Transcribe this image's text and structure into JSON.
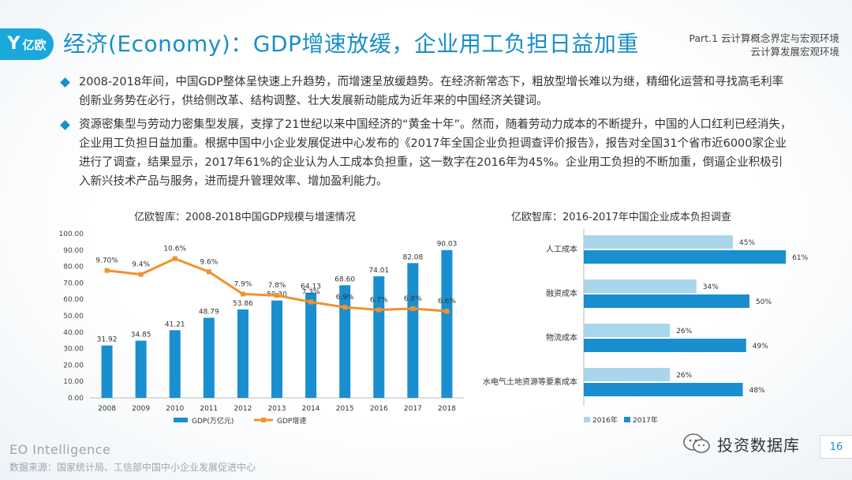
{
  "header": {
    "logo_text": "亿欧",
    "title": "经济(Economy)：GDP增速放缓，企业用工负担日益加重",
    "part_line1": "Part.1  云计算概念界定与宏观环境",
    "part_line2": "云计算发展宏观环境"
  },
  "bullets": [
    "2008-2018年间，中国GDP整体呈快速上升趋势，而增速呈放缓趋势。在经济新常态下，粗放型增长难以为继，精细化运营和寻找高毛利率创新业务势在必行，供给侧改革、结构调整、壮大发展新动能成为近年来的中国经济关键词。",
    "资源密集型与劳动力密集型发展，支撑了21世纪以来中国经济的“黄金十年”。然而，随着劳动力成本的不断提升，中国的人口红利已经消失，企业用工负担日益加重。根据中国中小企业发展促进中心发布的《2017年全国企业负担调查评价报告》，报告对全国31个省市近6000家企业进行了调查，结果显示，2017年61%的企业认为人工成本负担重，这一数字在2016年为45%。企业用工负担的不断加重，倒逼企业积极引入新兴技术产品与服务，进而提升管理效率、增加盈利能力。"
  ],
  "chart_data": [
    {
      "type": "bar",
      "title": "亿欧智库：2008-2018中国GDP规模与增速情况",
      "categories": [
        "2008",
        "2009",
        "2010",
        "2011",
        "2012",
        "2013",
        "2014",
        "2015",
        "2016",
        "2017",
        "2018"
      ],
      "series": [
        {
          "name": "GDP(万亿元)",
          "type": "bar",
          "color": "#1a8fd0",
          "values": [
            31.92,
            34.85,
            41.21,
            48.79,
            53.86,
            59.3,
            64.13,
            68.6,
            74.01,
            82.08,
            90.03
          ],
          "labels": [
            "31.92",
            "34.85",
            "41.21",
            "48.79",
            "53.86",
            "59.30",
            "64.13",
            "68.60",
            "74.01",
            "82.08",
            "90.03"
          ]
        },
        {
          "name": "GDP增速",
          "type": "line",
          "color": "#f0922e",
          "values": [
            9.7,
            9.4,
            10.6,
            9.6,
            7.9,
            7.8,
            7.3,
            6.9,
            6.7,
            6.8,
            6.6
          ],
          "labels": [
            "9.70%",
            "9.4%",
            "10.6%",
            "9.6%",
            "7.9%",
            "7.8%",
            "7.3%",
            "6.9%",
            "6.7%",
            "6.8%",
            "6.6%"
          ]
        }
      ],
      "yticks": [
        "0.00",
        "10.00",
        "20.00",
        "30.00",
        "40.00",
        "50.00",
        "60.00",
        "70.00",
        "80.00",
        "90.00",
        "100.00"
      ],
      "ylim": [
        0,
        100
      ],
      "legend_position": "bottom",
      "grid": false
    },
    {
      "type": "bar",
      "orientation": "horizontal",
      "title": "亿欧智库：2016-2017年中国企业成本负担调查",
      "categories": [
        "人工成本",
        "融资成本",
        "物流成本",
        "水电气土地资源等要素成本"
      ],
      "series": [
        {
          "name": "2016年",
          "color": "#a9d6ea",
          "values": [
            45,
            34,
            26,
            26
          ],
          "labels": [
            "45%",
            "34%",
            "26%",
            "26%"
          ]
        },
        {
          "name": "2017年",
          "color": "#1a8fd0",
          "values": [
            61,
            50,
            49,
            48
          ],
          "labels": [
            "61%",
            "50%",
            "49%",
            "48%"
          ]
        }
      ],
      "xlim": [
        0,
        100
      ],
      "legend_position": "bottom",
      "grid": false
    }
  ],
  "footer": {
    "brand": "EO Intelligence",
    "source": "数据来源：国家统计局、工信部中国中小企业发展促进中心",
    "wechat_name": "投资数据库",
    "page_number": "16"
  },
  "colors": {
    "accent": "#1a8fc9",
    "bar": "#1a8fd0",
    "bar_light": "#a9d6ea",
    "line": "#f0922e"
  }
}
